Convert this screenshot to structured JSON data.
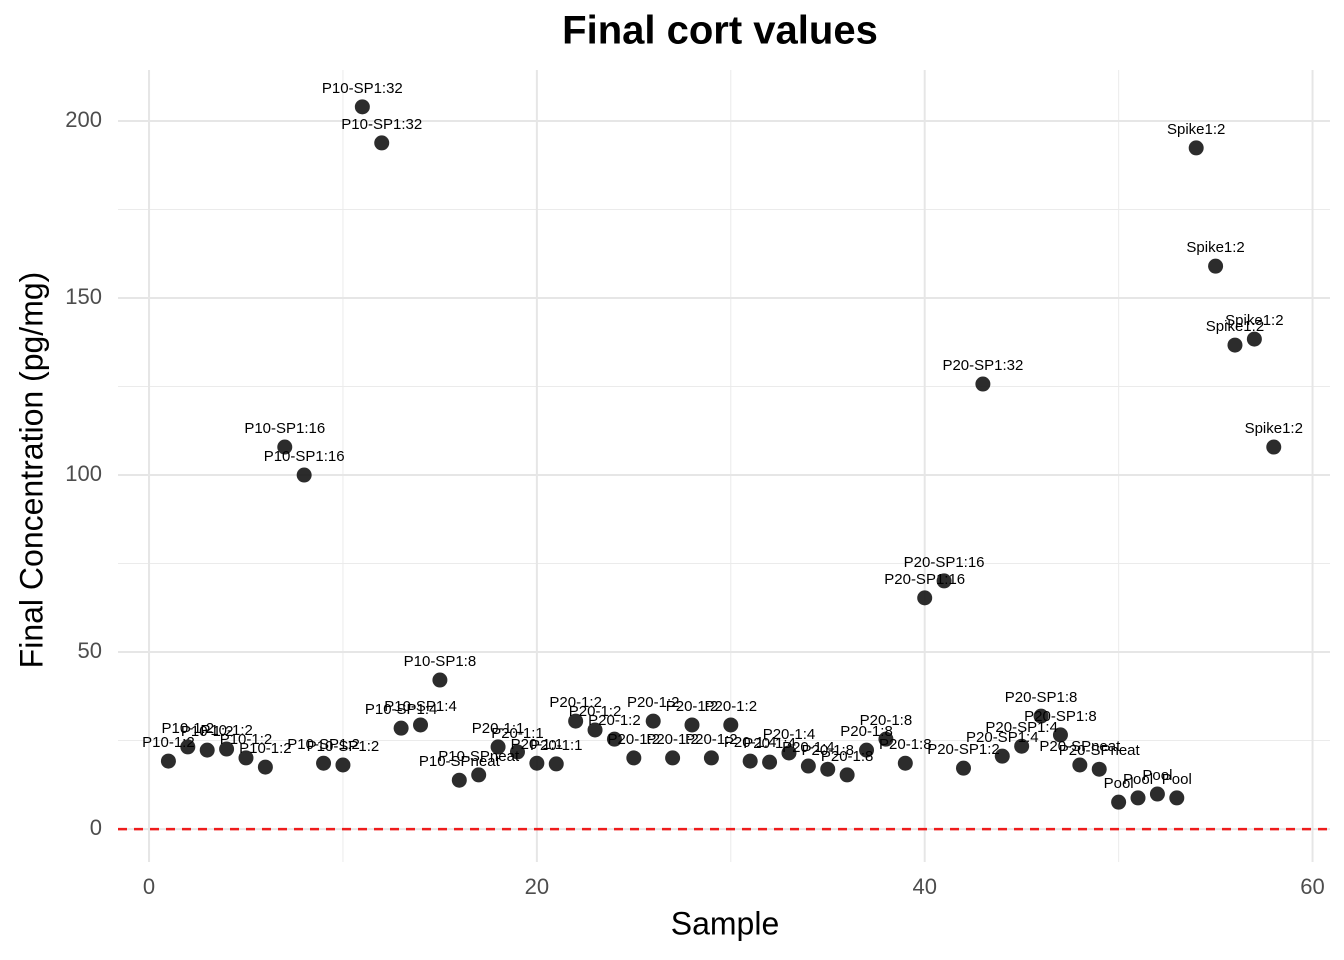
{
  "chart_data": {
    "type": "scatter",
    "title": "Final cort values",
    "x_label": "Sample",
    "y_label": "Final Concentration (pg/mg)",
    "x": [
      1,
      2,
      3,
      4,
      5,
      6,
      7,
      8,
      9,
      10,
      11,
      12,
      13,
      14,
      15,
      16,
      17,
      18,
      19,
      20,
      21,
      22,
      23,
      24,
      25,
      26,
      27,
      28,
      29,
      30,
      31,
      32,
      33,
      34,
      35,
      36,
      37,
      38,
      39,
      40,
      41,
      42,
      43,
      44,
      45,
      46,
      47,
      48,
      49,
      50,
      51,
      52,
      53,
      54,
      55,
      56,
      57,
      58
    ],
    "values": [
      19.2,
      23.2,
      22.3,
      22.6,
      20.1,
      17.5,
      107.9,
      100,
      18.6,
      18.1,
      204,
      193.8,
      28.5,
      29.4,
      42.1,
      13.8,
      15.3,
      23.2,
      21.8,
      18.6,
      18.4,
      30.5,
      28,
      25.4,
      20.1,
      30.5,
      20.1,
      29.4,
      20.1,
      29.4,
      19.2,
      18.9,
      21.5,
      17.8,
      16.9,
      15.3,
      22.3,
      25.4,
      18.6,
      65.3,
      70.1,
      17.2,
      125.7,
      20.6,
      23.4,
      31.9,
      26.6,
      18.1,
      16.9,
      7.6,
      8.8,
      9.9,
      8.8,
      192.4,
      159,
      136.7,
      138.4,
      107.9
    ],
    "point_labels": [
      "P10-1:2",
      "P10-1:2",
      "P10-1:2",
      "P10-1:2",
      "P10-1:2",
      "P10-1:2",
      "P10-SP1:16",
      "P10-SP1:16",
      "P10-SP1:2",
      "P10-SP1:2",
      "P10-SP1:32",
      "P10-SP1:32",
      "P10-SP1:4",
      "P10-SP1:4",
      "P10-SP1:8",
      "P10-SPneat",
      "P10-SPneat",
      "P20-1:1",
      "P20-1:1",
      "P20-1:1",
      "P20-1:1",
      "P20-1:2",
      "P20-1:2",
      "P20-1:2",
      "P20-1:2",
      "P20-1:2",
      "P20-1:2",
      "P20-1:2",
      "P20-1:2",
      "P20-1:2",
      "P20-1:4",
      "P20-1:4",
      "P20-1:4",
      "P20-1:4",
      "P20-1:8",
      "P20-1:8",
      "P20-1:8",
      "P20-1:8",
      "P20-1:8",
      "P20-SP1:16",
      "P20-SP1:16",
      "P20-SP1:2",
      "P20-SP1:32",
      "P20-SP1:4",
      "P20-SP1:4",
      "P20-SP1:8",
      "P20-SP1:8",
      "P20-SPneat",
      "P20-SPneat",
      "Pool",
      "Pool",
      "Pool",
      "Pool",
      "Spike1:2",
      "Spike1:2",
      "Spike1:2",
      "Spike1:2",
      "Spike1:2"
    ],
    "color": "#1a1a1a",
    "xlim": [
      -1.6,
      60.9
    ],
    "xticks": [
      0,
      20,
      40,
      60
    ],
    "ylim": [
      -9.3,
      214.4
    ],
    "yticks": [
      0,
      50,
      100,
      150,
      200
    ],
    "grid": true,
    "hline": 0,
    "hline_color": "#ee1c1c"
  }
}
